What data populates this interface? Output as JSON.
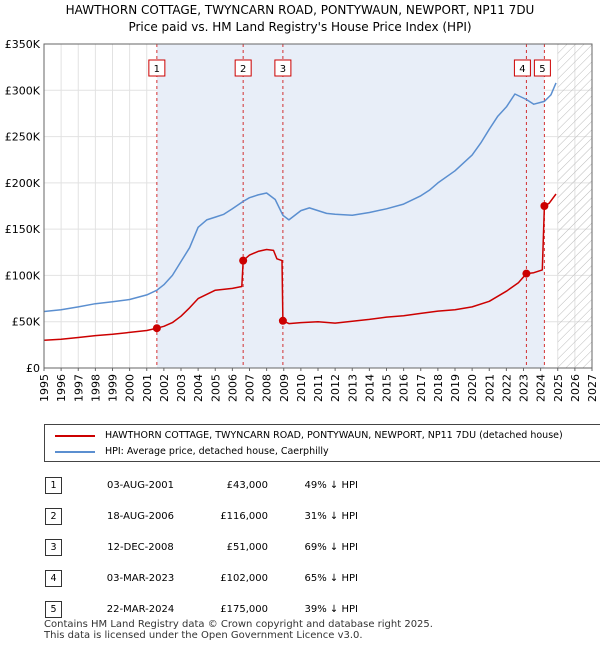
{
  "chart_data": {
    "type": "line",
    "title": "HAWTHORN COTTAGE, TWYNCARN ROAD, PONTYWAUN, NEWPORT, NP11 7DU",
    "subtitle": "Price paid vs. HM Land Registry's House Price Index (HPI)",
    "xlim": [
      1995,
      2027
    ],
    "ylim": [
      0,
      350000
    ],
    "x_ticks": [
      "1995",
      "1996",
      "1997",
      "1998",
      "1999",
      "2000",
      "2001",
      "2002",
      "2003",
      "2004",
      "2005",
      "2006",
      "2007",
      "2008",
      "2009",
      "2010",
      "2011",
      "2012",
      "2013",
      "2014",
      "2015",
      "2016",
      "2017",
      "2018",
      "2019",
      "2020",
      "2021",
      "2022",
      "2023",
      "2024",
      "2025",
      "2026",
      "2027"
    ],
    "y_ticks": [
      "£0",
      "£50K",
      "£100K",
      "£150K",
      "£200K",
      "£250K",
      "£300K",
      "£350K"
    ],
    "grid": true,
    "hatched_from": 2025.0,
    "colors": {
      "property": "#cc0000",
      "hpi": "#5b8fd0",
      "band": "#e8eef8",
      "marker_line": "#cc0000"
    },
    "series": [
      {
        "name": "HAWTHORN COTTAGE, TWYNCARN ROAD, PONTYWAUN, NEWPORT, NP11 7DU (detached house)",
        "color": "#cc0000",
        "points": [
          [
            1995.0,
            30000
          ],
          [
            1996.0,
            31000
          ],
          [
            1997.0,
            33000
          ],
          [
            1998.0,
            35000
          ],
          [
            1999.0,
            36500
          ],
          [
            2000.0,
            38500
          ],
          [
            2001.0,
            40500
          ],
          [
            2001.59,
            43000
          ],
          [
            2002.0,
            45000
          ],
          [
            2002.5,
            49000
          ],
          [
            2003.0,
            56000
          ],
          [
            2003.5,
            65000
          ],
          [
            2004.0,
            75000
          ],
          [
            2005.0,
            84000
          ],
          [
            2006.0,
            86000
          ],
          [
            2006.55,
            88000
          ],
          [
            2006.63,
            116000
          ],
          [
            2007.0,
            122000
          ],
          [
            2007.5,
            126000
          ],
          [
            2008.0,
            128000
          ],
          [
            2008.4,
            127000
          ],
          [
            2008.6,
            118000
          ],
          [
            2008.9,
            116000
          ],
          [
            2008.95,
            51000
          ],
          [
            2009.3,
            48000
          ],
          [
            2010.0,
            49000
          ],
          [
            2011.0,
            50000
          ],
          [
            2012.0,
            48500
          ],
          [
            2013.0,
            50500
          ],
          [
            2014.0,
            52500
          ],
          [
            2015.0,
            55000
          ],
          [
            2016.0,
            56500
          ],
          [
            2017.0,
            59000
          ],
          [
            2018.0,
            61500
          ],
          [
            2019.0,
            63000
          ],
          [
            2020.0,
            66000
          ],
          [
            2021.0,
            72000
          ],
          [
            2022.0,
            83000
          ],
          [
            2022.7,
            92000
          ],
          [
            2023.17,
            102000
          ],
          [
            2023.6,
            103000
          ],
          [
            2024.1,
            106000
          ],
          [
            2024.22,
            175000
          ],
          [
            2024.5,
            178000
          ],
          [
            2024.9,
            188000
          ]
        ]
      },
      {
        "name": "HPI: Average price, detached house, Caerphilly",
        "color": "#5b8fd0",
        "points": [
          [
            1995.0,
            61000
          ],
          [
            1996.0,
            63000
          ],
          [
            1997.0,
            66000
          ],
          [
            1998.0,
            69500
          ],
          [
            1999.0,
            71500
          ],
          [
            2000.0,
            74000
          ],
          [
            2001.0,
            79000
          ],
          [
            2001.59,
            84000
          ],
          [
            2002.0,
            90000
          ],
          [
            2002.5,
            100000
          ],
          [
            2003.0,
            115000
          ],
          [
            2003.5,
            130000
          ],
          [
            2004.0,
            152000
          ],
          [
            2004.5,
            160000
          ],
          [
            2005.0,
            163000
          ],
          [
            2005.5,
            166000
          ],
          [
            2006.0,
            172000
          ],
          [
            2006.63,
            180000
          ],
          [
            2007.0,
            184000
          ],
          [
            2007.5,
            187000
          ],
          [
            2008.0,
            189000
          ],
          [
            2008.5,
            182000
          ],
          [
            2008.95,
            165000
          ],
          [
            2009.3,
            160000
          ],
          [
            2010.0,
            170000
          ],
          [
            2010.5,
            173000
          ],
          [
            2011.0,
            170000
          ],
          [
            2011.5,
            167000
          ],
          [
            2012.0,
            166000
          ],
          [
            2013.0,
            165000
          ],
          [
            2014.0,
            168000
          ],
          [
            2015.0,
            172000
          ],
          [
            2016.0,
            177000
          ],
          [
            2017.0,
            186000
          ],
          [
            2017.5,
            192000
          ],
          [
            2018.0,
            200000
          ],
          [
            2019.0,
            213000
          ],
          [
            2020.0,
            230000
          ],
          [
            2020.5,
            243000
          ],
          [
            2021.0,
            258000
          ],
          [
            2021.5,
            272000
          ],
          [
            2022.0,
            282000
          ],
          [
            2022.5,
            296000
          ],
          [
            2023.17,
            290000
          ],
          [
            2023.6,
            285000
          ],
          [
            2024.22,
            288000
          ],
          [
            2024.6,
            295000
          ],
          [
            2024.9,
            308000
          ]
        ]
      }
    ],
    "sales": [
      {
        "id": "1",
        "x": 2001.59,
        "y": 43000
      },
      {
        "id": "2",
        "x": 2006.63,
        "y": 116000
      },
      {
        "id": "3",
        "x": 2008.95,
        "y": 51000
      },
      {
        "id": "4",
        "x": 2023.17,
        "y": 102000
      },
      {
        "id": "5",
        "x": 2024.22,
        "y": 175000
      }
    ]
  },
  "legend": [
    {
      "label": "HAWTHORN COTTAGE, TWYNCARN ROAD, PONTYWAUN, NEWPORT, NP11 7DU (detached house)",
      "color": "#cc0000"
    },
    {
      "label": "HPI: Average price, detached house, Caerphilly",
      "color": "#5b8fd0"
    }
  ],
  "table": {
    "rows": [
      {
        "num": "1",
        "date": "03-AUG-2001",
        "price": "£43,000",
        "hpi": "49% ↓ HPI"
      },
      {
        "num": "2",
        "date": "18-AUG-2006",
        "price": "£116,000",
        "hpi": "31% ↓ HPI"
      },
      {
        "num": "3",
        "date": "12-DEC-2008",
        "price": "£51,000",
        "hpi": "69% ↓ HPI"
      },
      {
        "num": "4",
        "date": "03-MAR-2023",
        "price": "£102,000",
        "hpi": "65% ↓ HPI"
      },
      {
        "num": "5",
        "date": "22-MAR-2024",
        "price": "£175,000",
        "hpi": "39% ↓ HPI"
      }
    ]
  },
  "footer": {
    "line1": "Contains HM Land Registry data © Crown copyright and database right 2025.",
    "line2": "This data is licensed under the Open Government Licence v3.0."
  }
}
